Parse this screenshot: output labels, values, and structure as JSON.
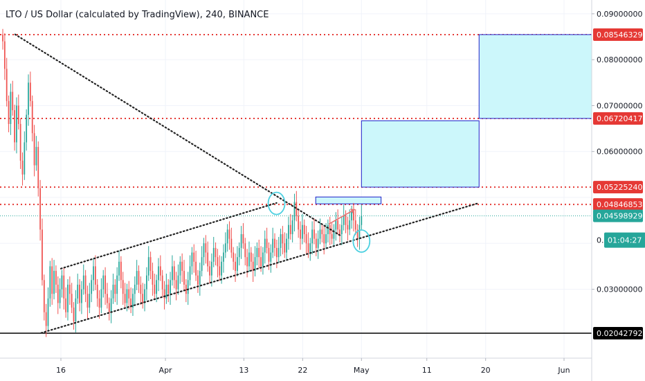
{
  "title": "LTO / US Dollar (calculated by TradingView), 240, BINANCE",
  "colors": {
    "up": "#26a69a",
    "down": "#ef5350",
    "level": "#e53935",
    "current": "#26a69a",
    "box_fill": "#ccf7fb",
    "box_stroke": "#1e1ec8",
    "trend": "#222222",
    "circle": "#4dd0e1",
    "arrow": "#e57373",
    "grid": "#f0f3fa"
  },
  "chart_data": {
    "type": "candlestick",
    "title": "LTO / US Dollar (calculated by TradingView), 240, BINANCE",
    "ylim": [
      0.015,
      0.093
    ],
    "x_ticks": [
      "16",
      "Apr",
      "13",
      "22",
      "May",
      "11",
      "20",
      "Jun"
    ],
    "y_ticks": [
      "0.09000000",
      "0.08000000",
      "0.07000000",
      "0.06000000",
      "0.03000000"
    ],
    "y_tick_values": [
      0.09,
      0.08,
      0.07,
      0.06,
      0.03
    ],
    "levels": [
      {
        "label": "0.08546329",
        "value": 0.08546329
      },
      {
        "label": "0.06720417",
        "value": 0.06720417
      },
      {
        "label": "0.05225240",
        "value": 0.0522524
      },
      {
        "label": "0.04846853",
        "value": 0.04846853
      }
    ],
    "support": {
      "label": "0.02042792",
      "value": 0.02042792
    },
    "current": {
      "label": "0.04598929",
      "value": 0.04598929,
      "countdown": "01:04:27",
      "partial": "0."
    },
    "targets": [
      {
        "x_range": [
          "Apr 24",
          "May 4"
        ],
        "y_range": [
          0.0486,
          0.0501
        ]
      },
      {
        "x_range": [
          "May 1",
          "May 19"
        ],
        "y_range": [
          0.0522524,
          0.0667
        ]
      },
      {
        "x_range": [
          "May 19",
          "Jun 7"
        ],
        "y_range": [
          0.06720417,
          0.08546329
        ]
      }
    ],
    "trendlines": [
      {
        "from": [
          "Mar 9",
          0.0855
        ],
        "to": [
          "Apr 28",
          0.0415
        ]
      },
      {
        "from": [
          "Mar 13",
          0.0205
        ],
        "to": [
          "May 19",
          0.0488
        ]
      },
      {
        "from": [
          "Mar 16",
          0.0345
        ],
        "to": [
          "Apr 18",
          0.0488
        ]
      }
    ],
    "circles": [
      {
        "x": "Apr 18",
        "y": 0.0487
      },
      {
        "x": "May 1",
        "y": 0.0405
      }
    ],
    "candles_close": [
      0.084,
      0.078,
      0.071,
      0.066,
      0.073,
      0.069,
      0.062,
      0.07,
      0.066,
      0.058,
      0.055,
      0.062,
      0.068,
      0.075,
      0.071,
      0.064,
      0.057,
      0.061,
      0.052,
      0.043,
      0.032,
      0.025,
      0.022,
      0.028,
      0.035,
      0.029,
      0.034,
      0.031,
      0.027,
      0.03,
      0.033,
      0.028,
      0.025,
      0.031,
      0.029,
      0.026,
      0.023,
      0.028,
      0.031,
      0.027,
      0.03,
      0.033,
      0.029,
      0.026,
      0.029,
      0.032,
      0.035,
      0.031,
      0.028,
      0.026,
      0.03,
      0.033,
      0.029,
      0.027,
      0.025,
      0.028,
      0.031,
      0.029,
      0.033,
      0.036,
      0.032,
      0.029,
      0.027,
      0.03,
      0.028,
      0.026,
      0.029,
      0.031,
      0.034,
      0.031,
      0.029,
      0.027,
      0.03,
      0.033,
      0.037,
      0.034,
      0.031,
      0.029,
      0.032,
      0.035,
      0.033,
      0.03,
      0.028,
      0.031,
      0.029,
      0.032,
      0.035,
      0.032,
      0.03,
      0.033,
      0.036,
      0.034,
      0.031,
      0.029,
      0.032,
      0.035,
      0.038,
      0.036,
      0.033,
      0.031,
      0.034,
      0.037,
      0.04,
      0.038,
      0.035,
      0.033,
      0.036,
      0.039,
      0.037,
      0.035,
      0.033,
      0.036,
      0.038,
      0.04,
      0.043,
      0.041,
      0.038,
      0.036,
      0.034,
      0.037,
      0.039,
      0.042,
      0.04,
      0.037,
      0.035,
      0.038,
      0.036,
      0.034,
      0.037,
      0.039,
      0.037,
      0.035,
      0.038,
      0.041,
      0.039,
      0.036,
      0.038,
      0.041,
      0.039,
      0.037,
      0.039,
      0.042,
      0.04,
      0.038,
      0.041,
      0.044,
      0.042,
      0.045,
      0.049,
      0.046,
      0.043,
      0.041,
      0.044,
      0.042,
      0.04,
      0.038,
      0.04,
      0.043,
      0.041,
      0.039,
      0.041,
      0.043,
      0.042,
      0.04,
      0.042,
      0.044,
      0.042,
      0.041,
      0.043,
      0.045,
      0.043,
      0.042,
      0.044,
      0.046,
      0.044,
      0.043,
      0.045,
      0.047,
      0.045,
      0.043,
      0.041,
      0.044,
      0.046
    ]
  }
}
